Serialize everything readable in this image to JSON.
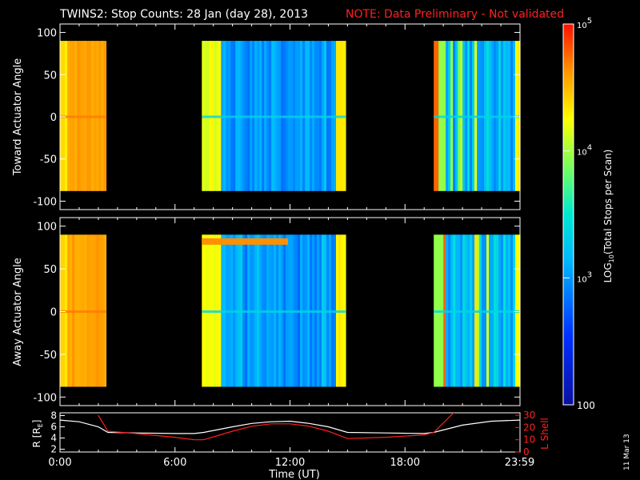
{
  "title": {
    "main": "TWINS2: Stop Counts: 28 Jan (day  28), 2013",
    "note": "NOTE: Data Preliminary - Not validated"
  },
  "date_stamp": "11 Mar 13",
  "colors": {
    "background": "#000000",
    "axes": "#ffffff",
    "note": "#ff2020",
    "radius_line": "#ffffff",
    "lshell_line": "#ff2020"
  },
  "chart_data": [
    {
      "type": "heatmap",
      "panel": "top",
      "ylabel": "Toward Actuator Angle",
      "ylim": [
        -110,
        110
      ],
      "yticks": [
        100,
        50,
        0,
        -50,
        -100
      ],
      "xlim": [
        0,
        24
      ],
      "data_blocks": [
        {
          "start_hour": 0.0,
          "end_hour": 2.4,
          "level": "high"
        },
        {
          "start_hour": 7.4,
          "end_hour": 14.9,
          "level": "low"
        },
        {
          "start_hour": 19.5,
          "end_hour": 24.0,
          "level": "mixed"
        }
      ],
      "angle_range": [
        -88,
        90
      ]
    },
    {
      "type": "heatmap",
      "panel": "middle",
      "ylabel": "Away Actuator Angle",
      "ylim": [
        -110,
        110
      ],
      "yticks": [
        100,
        50,
        0,
        -50,
        -100
      ],
      "xlim": [
        0,
        24
      ],
      "data_blocks": [
        {
          "start_hour": 0.0,
          "end_hour": 2.4,
          "level": "high"
        },
        {
          "start_hour": 7.4,
          "end_hour": 14.9,
          "level": "low"
        },
        {
          "start_hour": 19.5,
          "end_hour": 24.0,
          "level": "mixed"
        }
      ],
      "angle_range": [
        -88,
        90
      ]
    },
    {
      "type": "colorbar",
      "label": "LOG10(Total Stops per Scan)",
      "label_parts": {
        "pre": "LOG",
        "sub": "10",
        "post": "(Total Stops per Scan)"
      },
      "scale": "log",
      "range": [
        100,
        100000
      ],
      "ticks": [
        {
          "value": 100000,
          "base": "10",
          "exp": "5"
        },
        {
          "value": 10000,
          "base": "10",
          "exp": "4"
        },
        {
          "value": 1000,
          "base": "10",
          "exp": "3"
        },
        {
          "value": 100,
          "label": "100"
        }
      ]
    },
    {
      "type": "line",
      "panel": "bottom",
      "xlabel": "Time (UT)",
      "xticks": [
        "0:00",
        "6:00",
        "12:00",
        "18:00",
        "23:59"
      ],
      "xtick_hours": [
        0,
        6,
        12,
        18,
        23.98
      ],
      "left_axis": {
        "label": "R [R",
        "label_sub": "E",
        "label_end": "]",
        "ylim": [
          1.5,
          8.5
        ],
        "ticks": [
          2,
          4,
          6,
          8
        ]
      },
      "right_axis": {
        "label": "L Shell",
        "ylim": [
          0,
          32
        ],
        "ticks": [
          0,
          10,
          20,
          30
        ]
      },
      "series": [
        {
          "axis": "left",
          "x": [
            0,
            1,
            2,
            2.5,
            4,
            6,
            7,
            7.5,
            9,
            10,
            11,
            12,
            13,
            14,
            15,
            17,
            19,
            19.5,
            21,
            22.5,
            24
          ],
          "y": [
            7.2,
            6.9,
            6.0,
            5.0,
            4.9,
            4.8,
            4.8,
            5.0,
            6.0,
            6.6,
            6.9,
            7.0,
            6.6,
            6.0,
            5.0,
            4.9,
            4.8,
            5.0,
            6.3,
            7.0,
            7.2
          ]
        },
        {
          "axis": "right",
          "x": [
            2.0,
            2.5,
            4,
            6,
            7,
            7.5,
            9,
            10,
            11,
            12,
            13,
            14,
            15,
            17,
            19,
            19.5,
            20.6
          ],
          "y": [
            30,
            17,
            15,
            12,
            10,
            10,
            17,
            21,
            23,
            23,
            21,
            17,
            11,
            12,
            14,
            16,
            33
          ]
        }
      ]
    }
  ]
}
